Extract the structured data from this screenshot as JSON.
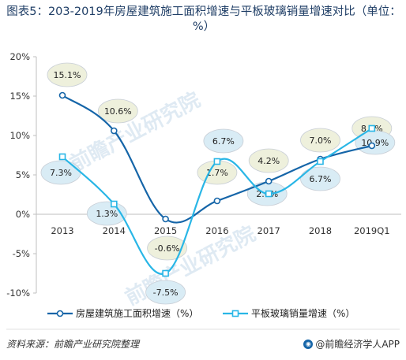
{
  "title": "图表5：203-2019年房屋建筑施工面积增速与平板玻璃销量增速对比（单位：%）",
  "source": "资料来源：前瞻产业研究院整理",
  "brand": "@前瞻经济学人APP",
  "watermark": "前瞻产业研究院",
  "colors": {
    "series1": "#1565a8",
    "series2": "#29b6e6",
    "bubble1": "#eef0dc",
    "bubble2": "#d9ecf5"
  },
  "chart_data": {
    "type": "line",
    "categories": [
      "2013",
      "2014",
      "2015",
      "2016",
      "2017",
      "2018",
      "2019Q1"
    ],
    "series": [
      {
        "name": "房屋建筑施工面积增速（%）",
        "values": [
          15.1,
          10.6,
          -0.6,
          1.7,
          4.2,
          7.0,
          8.7
        ],
        "labels": [
          "15.1%",
          "10.6%",
          "-0.6%",
          "1.7%",
          "4.2%",
          "7.0%",
          "8.7%"
        ]
      },
      {
        "name": "平板玻璃销量增速（%）",
        "values": [
          7.3,
          1.3,
          -7.5,
          6.7,
          2.6,
          6.7,
          10.9
        ],
        "labels": [
          "7.3%",
          "1.3%",
          "-7.5%",
          "6.7%",
          "2.6%",
          "6.7%",
          "10.9%"
        ]
      }
    ],
    "ylim": [
      -10,
      20
    ],
    "yticks": [
      20,
      15,
      10,
      5,
      0,
      -5,
      -10
    ],
    "ytick_labels": [
      "20%",
      "15%",
      "10%",
      "5%",
      "0%",
      "-5%",
      "-10%"
    ],
    "legend_position": "bottom",
    "grid": false
  }
}
